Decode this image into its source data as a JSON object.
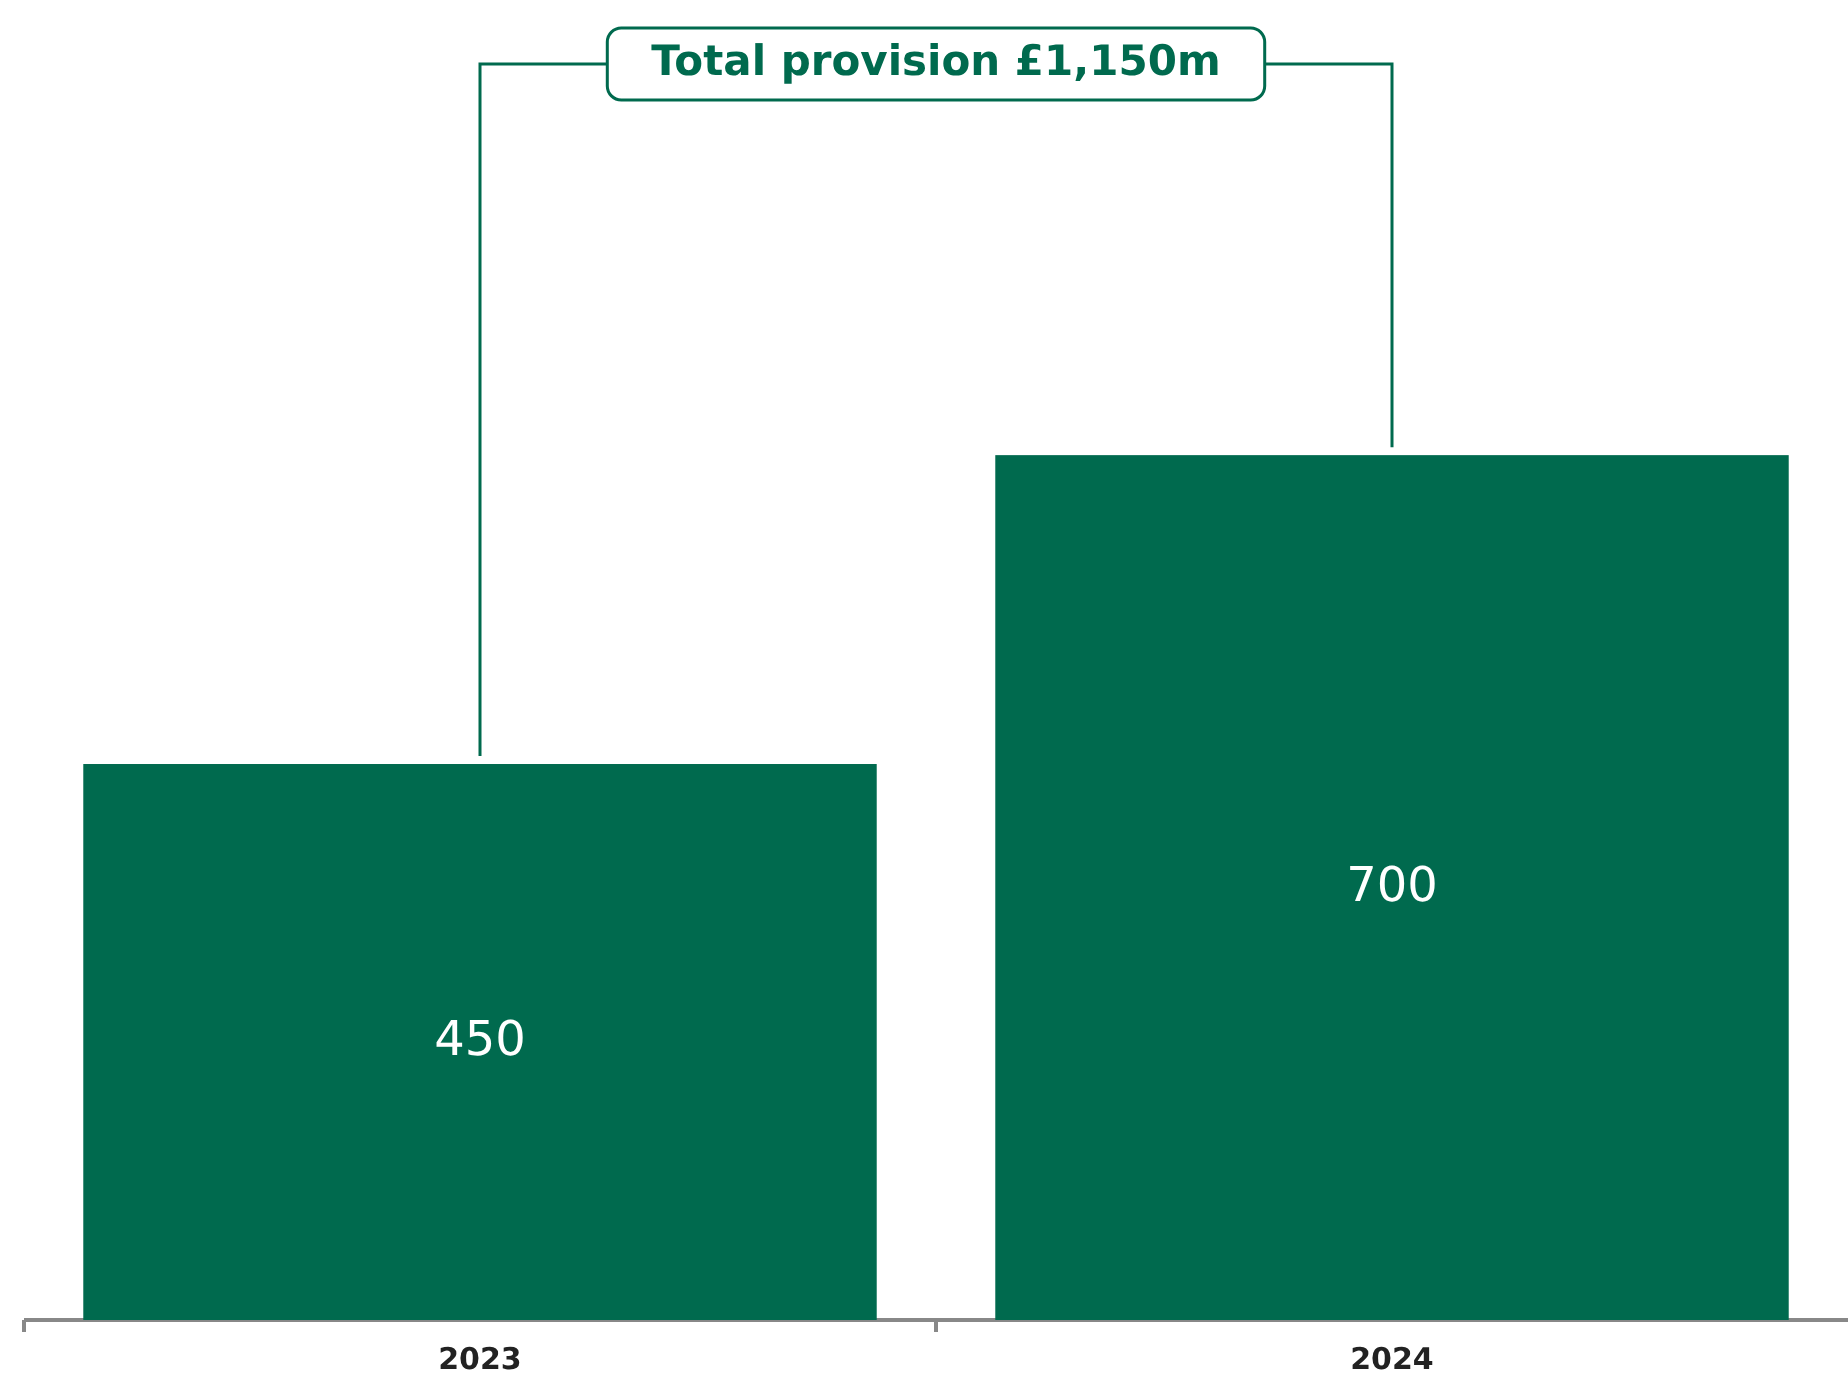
{
  "chart_data": {
    "type": "bar",
    "categories": [
      "2023",
      "2024"
    ],
    "values": [
      450,
      700
    ],
    "color": "#006a4e",
    "tick_labels": "x",
    "data_labels": true,
    "annotations": [
      "Total provision £1,150m"
    ]
  }
}
